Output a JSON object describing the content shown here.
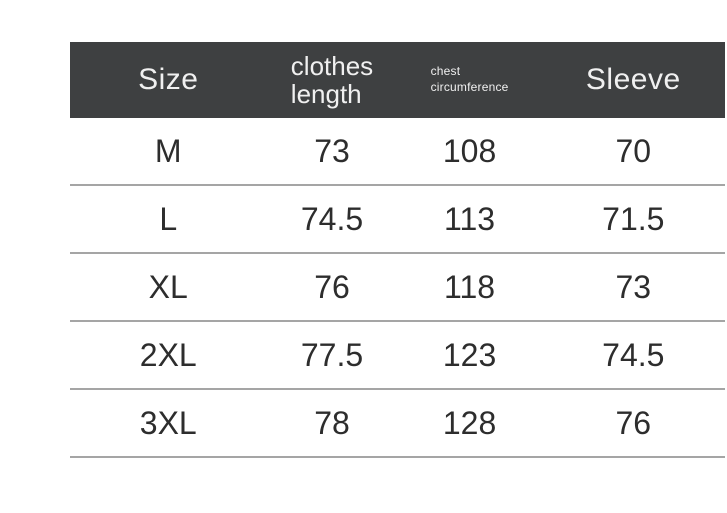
{
  "header": {
    "col1": "Size",
    "col2_line1": "clothes",
    "col2_line2": "length",
    "col3_line1": "chest",
    "col3_line2": "circumference",
    "col4": "Sleeve"
  },
  "chart_data": {
    "type": "table",
    "columns": [
      "Size",
      "clothes length",
      "chest circumference",
      "Sleeve"
    ],
    "rows": [
      [
        "M",
        "73",
        "108",
        "70"
      ],
      [
        "L",
        "74.5",
        "113",
        "71.5"
      ],
      [
        "XL",
        "76",
        "118",
        "73"
      ],
      [
        "2XL",
        "77.5",
        "123",
        "74.5"
      ],
      [
        "3XL",
        "78",
        "128",
        "76"
      ]
    ]
  },
  "colors": {
    "header_bg": "#3e4041",
    "header_text": "#f0f0f0",
    "cell_text": "#2d2d2d",
    "divider": "#a5a5a5",
    "page_bg": "#ffffff"
  }
}
